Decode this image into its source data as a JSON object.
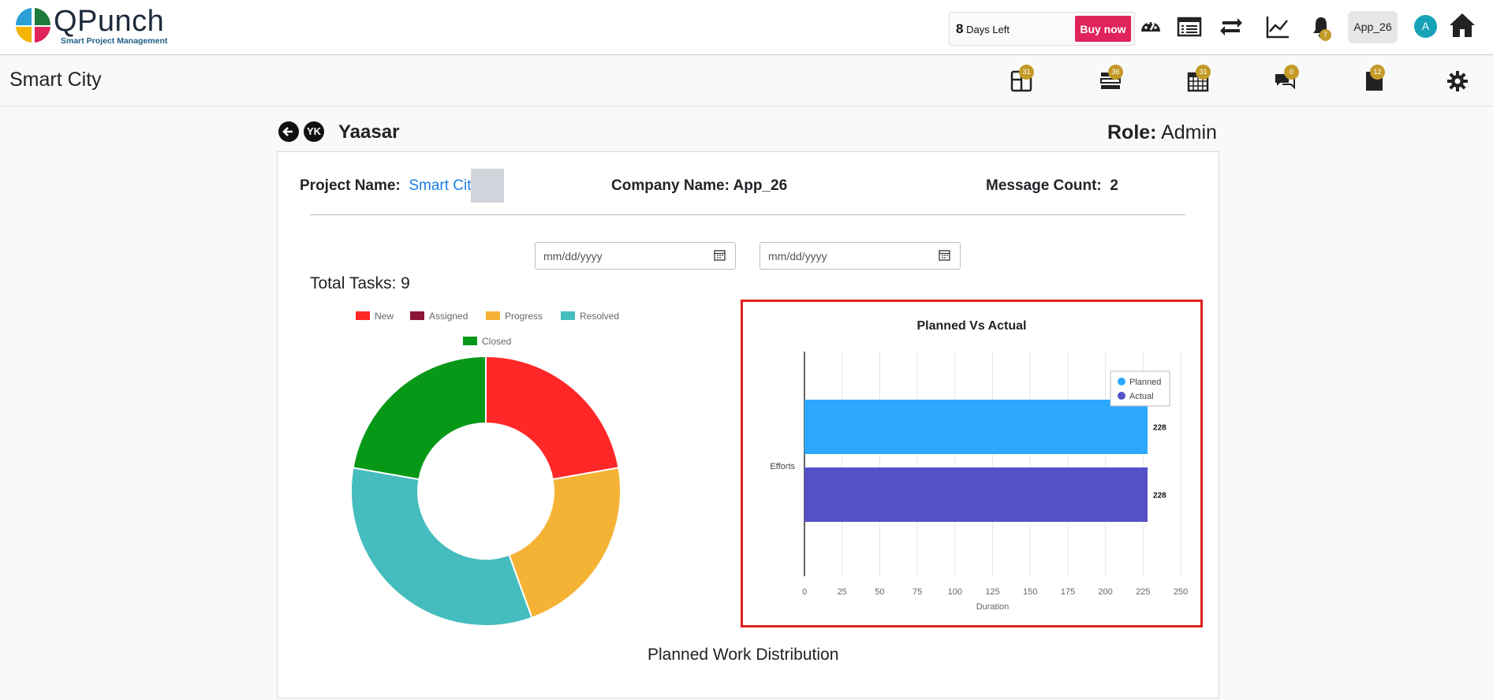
{
  "header": {
    "brand_name": "QPunch",
    "tagline": "Smart Project Management",
    "trial_days": "8",
    "trial_suffix": "Days Left",
    "buy_now_label": "Buy now",
    "notification_count": "7",
    "app_button_label": "App_26",
    "avatar_initial": "A",
    "brand_colors": [
      "#2b9fd8",
      "#e0235b",
      "#f4b400",
      "#1d7a3b"
    ]
  },
  "subheader": {
    "project_title": "Smart City",
    "badges": {
      "boards": "31",
      "tasks": "36",
      "calendar": "31",
      "messages": "0",
      "files": "12"
    }
  },
  "user": {
    "initials": "YK",
    "name": "Yaasar",
    "role_label": "Role:",
    "role_value": "Admin"
  },
  "project_info": {
    "project_name_label": "Project Name:",
    "project_name_value": "Smart City",
    "company_label": "Company Name: App_26",
    "message_label": "Message Count:",
    "message_value": "2"
  },
  "filters": {
    "start_placeholder": "mm/dd/yyyy",
    "end_placeholder": "mm/dd/yyyy"
  },
  "total_tasks_label": "Total Tasks: 9",
  "planned_work_distribution_label": "Planned Work Distribution",
  "chart_data": [
    {
      "type": "pie",
      "variant": "doughnut",
      "title": "",
      "legend_placement": "top",
      "categories": [
        "New",
        "Assigned",
        "Progress",
        "Resolved",
        "Closed"
      ],
      "values": [
        2,
        0,
        2,
        3,
        2
      ],
      "colors": [
        "#ff2727",
        "#8b1538",
        "#f5b335",
        "#45bcbe",
        "#079818"
      ]
    },
    {
      "type": "bar",
      "orientation": "horizontal",
      "title": "Planned Vs Actual",
      "categories": [
        "Efforts"
      ],
      "series": [
        {
          "name": "Planned",
          "values": [
            228
          ],
          "color": "#2ca9ff"
        },
        {
          "name": "Actual",
          "values": [
            228
          ],
          "color": "#5450c8"
        }
      ],
      "xlabel": "Duration",
      "ylabel": "",
      "xlim": [
        0,
        250
      ],
      "xticks": [
        0,
        25,
        50,
        75,
        100,
        125,
        150,
        175,
        200,
        225,
        250
      ],
      "grid": true,
      "legend_placement": "top-right"
    }
  ]
}
